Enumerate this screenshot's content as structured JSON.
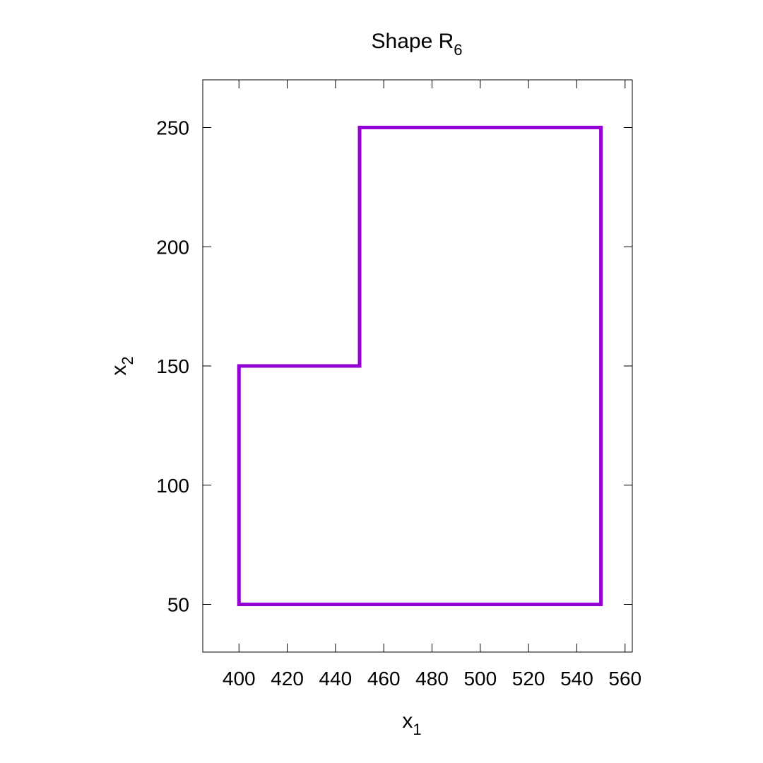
{
  "chart_data": {
    "type": "line",
    "title": {
      "base": "Shape R",
      "subscript": "6"
    },
    "xlabel": {
      "base": "x",
      "subscript": "1"
    },
    "ylabel": {
      "base": "x",
      "subscript": "2"
    },
    "xlim": [
      385,
      563
    ],
    "ylim": [
      30,
      270
    ],
    "x_ticks": [
      400,
      420,
      440,
      460,
      480,
      500,
      520,
      540,
      560
    ],
    "y_ticks": [
      50,
      100,
      150,
      200,
      250
    ],
    "grid": false,
    "series": [
      {
        "color": "#9400d3",
        "closed": true,
        "points": [
          [
            400,
            50
          ],
          [
            550,
            50
          ],
          [
            550,
            250
          ],
          [
            450,
            250
          ],
          [
            450,
            150
          ],
          [
            400,
            150
          ]
        ]
      }
    ]
  }
}
